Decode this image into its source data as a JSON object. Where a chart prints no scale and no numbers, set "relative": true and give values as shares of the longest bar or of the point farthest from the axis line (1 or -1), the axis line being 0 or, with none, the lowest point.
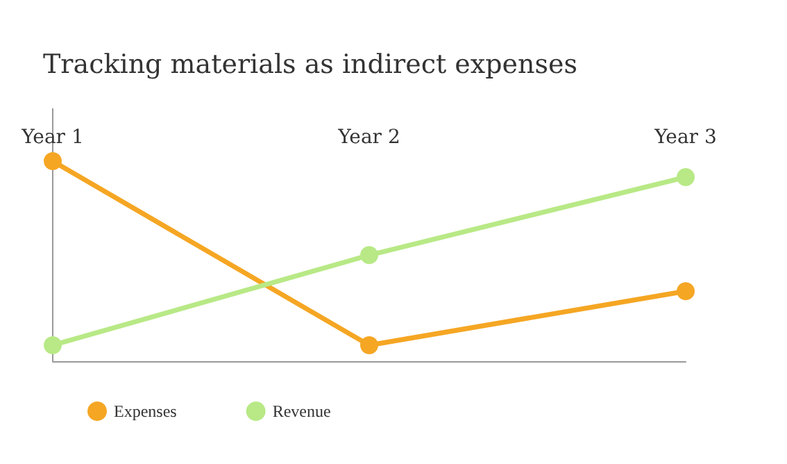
{
  "chart_data": {
    "type": "line",
    "title": "Tracking materials as indirect expenses",
    "categories": [
      "Year 1",
      "Year 2",
      "Year 3"
    ],
    "relative": true,
    "marker": "circle",
    "line_style": "solid",
    "legend": "bottom left",
    "series": [
      {
        "name": "Expenses",
        "color": "#f5a623",
        "values": [
          1,
          0.08,
          0.35
        ]
      },
      {
        "name": "Revenue",
        "color": "#b8e986",
        "values": [
          0.08,
          0.53,
          0.92
        ]
      }
    ]
  }
}
